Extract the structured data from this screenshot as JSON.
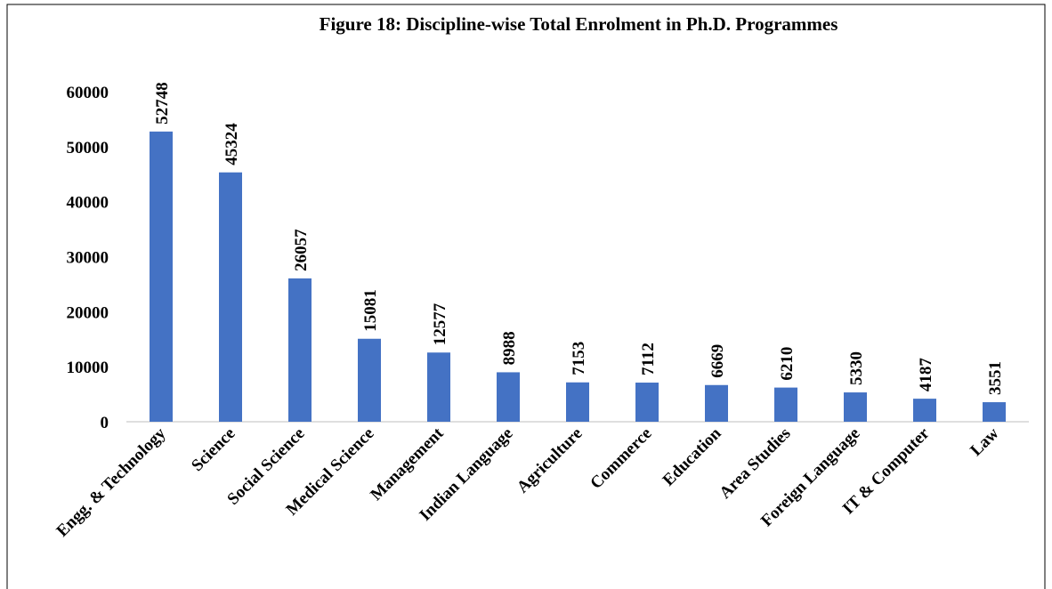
{
  "chart_data": {
    "type": "bar",
    "title": "Figure 18: Discipline-wise Total Enrolment in Ph.D. Programmes",
    "categories": [
      "Engg. & Technology",
      "Science",
      "Social Science",
      "Medical Science",
      "Management",
      "Indian Language",
      "Agriculture",
      "Commerce",
      "Education",
      "Area Studies",
      "Foreign Language",
      "IT & Computer",
      "Law"
    ],
    "values": [
      52748,
      45324,
      26057,
      15081,
      12577,
      8988,
      7153,
      7112,
      6669,
      6210,
      5330,
      4187,
      3551
    ],
    "color": "#4472c4",
    "ylim": [
      0,
      60000
    ],
    "yticks": [
      0,
      10000,
      20000,
      30000,
      40000,
      50000,
      60000
    ],
    "grid": false
  }
}
